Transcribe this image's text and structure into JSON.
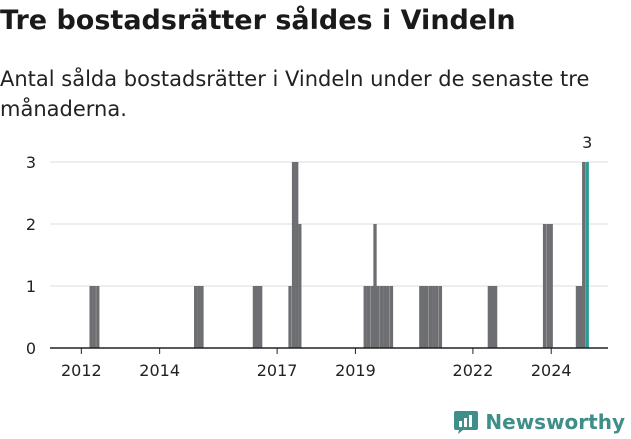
{
  "title": "Tre bostadsrätter såldes i Vindeln",
  "subtitle": "Antal sålda bostadsrätter i Vindeln under de senaste tre månaderna.",
  "brand": {
    "name": "Newsworthy",
    "color": "#3f8e89"
  },
  "colors": {
    "bar": "#6d6e71",
    "highlight": "#2a9d96",
    "grid": "#dddddd",
    "axis": "#222222",
    "text": "#222222"
  },
  "chart_data": {
    "type": "bar",
    "xlabel": "",
    "ylabel": "",
    "ylim": [
      0,
      3
    ],
    "yticks": [
      0,
      1,
      2,
      3
    ],
    "xlim": [
      2011.2,
      2025.45
    ],
    "xticks": [
      {
        "value": 2012,
        "label": "2012"
      },
      {
        "value": 2014,
        "label": "2014"
      },
      {
        "value": 2017,
        "label": "2017"
      },
      {
        "value": 2019,
        "label": "2019"
      },
      {
        "value": 2022,
        "label": "2022"
      },
      {
        "value": 2024,
        "label": "2024"
      }
    ],
    "grid": true,
    "series": [
      {
        "points": [
          {
            "x": 2012.25,
            "y": 1
          },
          {
            "x": 2012.33,
            "y": 1
          },
          {
            "x": 2012.42,
            "y": 1
          },
          {
            "x": 2014.92,
            "y": 1
          },
          {
            "x": 2015.0,
            "y": 1
          },
          {
            "x": 2015.08,
            "y": 1
          },
          {
            "x": 2016.42,
            "y": 1
          },
          {
            "x": 2016.5,
            "y": 1
          },
          {
            "x": 2016.58,
            "y": 1
          },
          {
            "x": 2017.33,
            "y": 1
          },
          {
            "x": 2017.42,
            "y": 3
          },
          {
            "x": 2017.5,
            "y": 3
          },
          {
            "x": 2017.58,
            "y": 2
          },
          {
            "x": 2019.25,
            "y": 1
          },
          {
            "x": 2019.33,
            "y": 1
          },
          {
            "x": 2019.42,
            "y": 1
          },
          {
            "x": 2019.5,
            "y": 2
          },
          {
            "x": 2019.58,
            "y": 1
          },
          {
            "x": 2019.67,
            "y": 1
          },
          {
            "x": 2019.75,
            "y": 1
          },
          {
            "x": 2019.83,
            "y": 1
          },
          {
            "x": 2019.92,
            "y": 1
          },
          {
            "x": 2020.67,
            "y": 1
          },
          {
            "x": 2020.75,
            "y": 1
          },
          {
            "x": 2020.83,
            "y": 1
          },
          {
            "x": 2020.92,
            "y": 1
          },
          {
            "x": 2021.0,
            "y": 1
          },
          {
            "x": 2021.08,
            "y": 1
          },
          {
            "x": 2021.17,
            "y": 1
          },
          {
            "x": 2022.42,
            "y": 1
          },
          {
            "x": 2022.5,
            "y": 1
          },
          {
            "x": 2022.58,
            "y": 1
          },
          {
            "x": 2023.83,
            "y": 2
          },
          {
            "x": 2023.92,
            "y": 2
          },
          {
            "x": 2024.0,
            "y": 2
          },
          {
            "x": 2024.67,
            "y": 1
          },
          {
            "x": 2024.75,
            "y": 1
          },
          {
            "x": 2024.83,
            "y": 3
          },
          {
            "x": 2024.92,
            "y": 3,
            "highlight": true,
            "label": "3"
          }
        ]
      }
    ]
  }
}
